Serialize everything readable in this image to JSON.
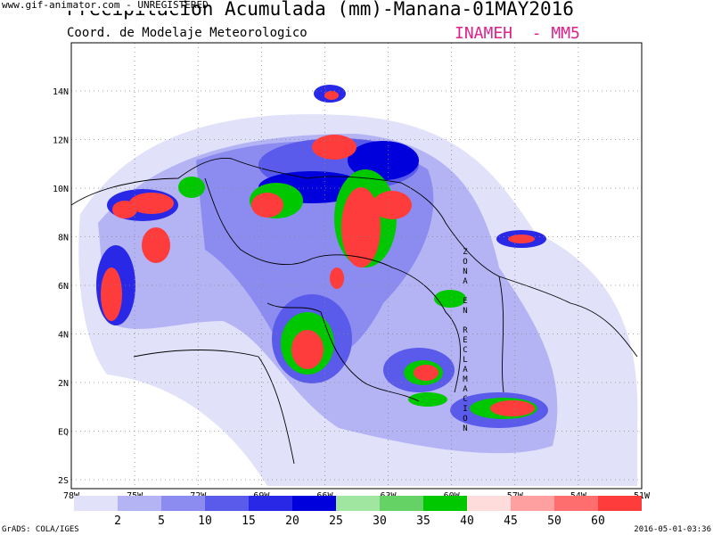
{
  "header": {
    "title": "Precipitacion Acumulada (mm)-Manana-01MAY2016",
    "subtitle": "Coord. de Modelaje Meteorologico",
    "org": "INAMEH  - MM5",
    "watermark": "www.gif-animator.com - UNREGISTERED"
  },
  "map": {
    "lat_labels": [
      "14N",
      "12N",
      "10N",
      "8N",
      "6N",
      "4N",
      "2N",
      "EQ",
      "2S"
    ],
    "lon_labels": [
      "78W",
      "75W",
      "72W",
      "69W",
      "66W",
      "63W",
      "60W",
      "57W",
      "54W",
      "51W"
    ],
    "annotation": "ZONA EN RECLAMACION"
  },
  "legend": {
    "labels": [
      "2",
      "5",
      "10",
      "15",
      "20",
      "25",
      "30",
      "35",
      "40",
      "45",
      "50",
      "60"
    ],
    "colors": [
      "#e1e1fa",
      "#b4b4f5",
      "#8c8cf0",
      "#5a5aeb",
      "#2828e6",
      "#0000dc",
      "#a0e6a0",
      "#64d264",
      "#00c800",
      "#ffdcdc",
      "#ffa0a0",
      "#ff6e6e",
      "#ff3c3c"
    ]
  },
  "footer": {
    "left": "GrADS: COLA/IGES",
    "right": "2016-05-01-03:36"
  }
}
